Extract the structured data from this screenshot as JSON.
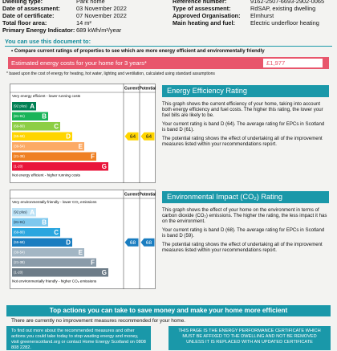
{
  "details": {
    "left": [
      {
        "label": "Dwelling type:",
        "value": "Park home"
      },
      {
        "label": "Date of assessment:",
        "value": "03 November 2022"
      },
      {
        "label": "Date of certificate:",
        "value": "07 November 2022"
      },
      {
        "label": "Total floor area:",
        "value": "14 m²"
      },
      {
        "label": "Primary Energy Indicator:",
        "value": "689 kWh/m²/year"
      }
    ],
    "right": [
      {
        "label": "Reference number:",
        "value": "9162-2507-6693-2902-0065"
      },
      {
        "label": "Type of assessment:",
        "value": "RdSAP, existing dwelling"
      },
      {
        "label": "Approved Organisation:",
        "value": "Elmhurst"
      },
      {
        "label": "Main heating and fuel:",
        "value": "Electric underfloor heating"
      }
    ]
  },
  "use": {
    "heading": "You can use this document to:",
    "bullet": "Compare current ratings of properties to see which are more energy efficient and environmentally friendly"
  },
  "cost": {
    "label": "Estimated energy costs for your home for 3 years*",
    "value": "£1,977",
    "note": "* based upon the cost of energy for heating, hot water, lighting and ventilation, calculated using standard assumptions"
  },
  "ratings": [
    {
      "top_note": "Very energy efficient - lower running costs",
      "bottom_note": "Not energy efficient - higher running costs",
      "columns": [
        "Current",
        "Potential"
      ],
      "bands": [
        {
          "range": "(92 plus)",
          "letter": "A"
        },
        {
          "range": "(81-91)",
          "letter": "B"
        },
        {
          "range": "(69-80)",
          "letter": "C"
        },
        {
          "range": "(55-68)",
          "letter": "D"
        },
        {
          "range": "(39-54)",
          "letter": "E"
        },
        {
          "range": "(21-38)",
          "letter": "F"
        },
        {
          "range": "(1-20)",
          "letter": "G"
        }
      ],
      "current": 64,
      "potential": 64,
      "heading": "Energy Efficiency Rating",
      "paragraphs": [
        "This graph shows the current efficiency of your home, taking into account both energy efficiency and fuel costs. The higher this rating, the lower your fuel bills are likely to be.",
        "Your current rating is band D (64). The average rating for EPCs in Scotland is band D (61).",
        "The potential rating shows the effect of undertaking all of the improvement measures listed within your recommendations report."
      ]
    },
    {
      "top_note": "Very environmentally friendly - lower CO₂ emissions",
      "bottom_note": "Not environmentally friendly - higher CO₂ emissions",
      "columns": [
        "Current",
        "Potential"
      ],
      "bands": [
        {
          "range": "(92 plus)",
          "letter": "A"
        },
        {
          "range": "(81-91)",
          "letter": "B"
        },
        {
          "range": "(69-80)",
          "letter": "C"
        },
        {
          "range": "(55-68)",
          "letter": "D"
        },
        {
          "range": "(39-54)",
          "letter": "E"
        },
        {
          "range": "(21-38)",
          "letter": "F"
        },
        {
          "range": "(1-20)",
          "letter": "G"
        }
      ],
      "current": 68,
      "potential": 68,
      "heading": "Environmental Impact (CO₂) Rating",
      "paragraphs": [
        "This graph shows the effect of your home on the environment in terms of carbon dioxide (CO₂) emissions. The higher the rating, the less impact it has on the environment.",
        "Your current rating is band D (68). The average rating for EPCs in Scotland is band D (59).",
        "The potential rating shows the effect of undertaking all of the improvement measures listed within your recommendations report."
      ]
    }
  ],
  "actions": {
    "heading": "Top actions you can take to save money and make your home more efficient",
    "text": "There are currently no improvement measures recommended for your home."
  },
  "footer": {
    "left": "To find out more about the recommended measures and other actions you could take today to stop wasting energy and money, visit greenerscotland.org or contact Home Energy Scotland on 0808 808 2282.",
    "right": "THIS PAGE IS THE ENERGY PERFORMANCE CERTIFICATE WHICH MUST BE AFFIXED TO THE DWELLING AND NOT BE REMOVED UNLESS IT IS REPLACED WITH AN UPDATED CERTIFICATE"
  }
}
